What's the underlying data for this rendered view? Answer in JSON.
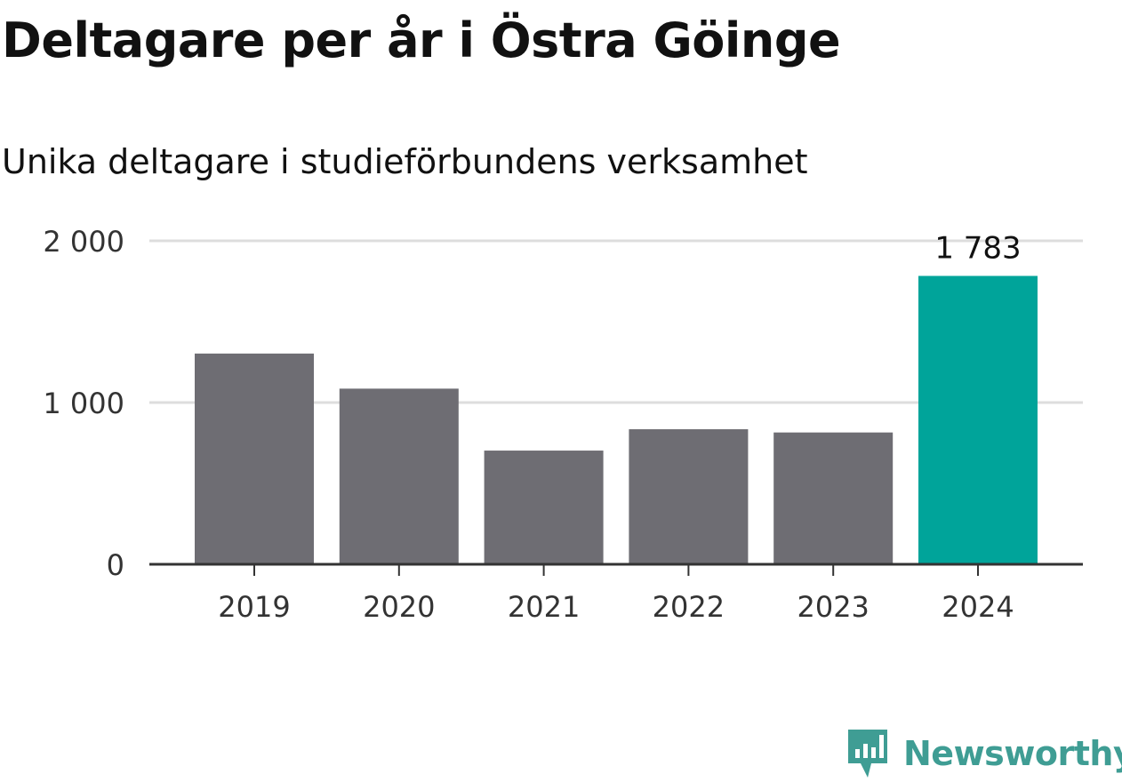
{
  "title": "Deltagare per år i Östra Göinge",
  "subtitle": "Unika deltagare i studieförbundens verksamhet",
  "brand": {
    "name": "Newsworthy",
    "icon": "newsworthy-logo-icon",
    "color": "#3f9d94"
  },
  "colors": {
    "bar": "#6e6d73",
    "highlight": "#00a49a",
    "grid": "#dddddd",
    "axis": "#333333",
    "tick_text": "#333333"
  },
  "chart_data": {
    "type": "bar",
    "categories": [
      "2019",
      "2020",
      "2021",
      "2022",
      "2023",
      "2024"
    ],
    "values": [
      1303,
      1086,
      703,
      835,
      815,
      1783
    ],
    "highlight_index": 5,
    "data_labels": [
      {
        "index": 5,
        "text": "1 783"
      }
    ],
    "y_ticks": [
      {
        "value": 0,
        "label": "0"
      },
      {
        "value": 1000,
        "label": "1 000"
      },
      {
        "value": 2000,
        "label": "2 000"
      }
    ],
    "ylim": [
      0,
      2000
    ],
    "grid": true,
    "legend": "none",
    "xlabel": "",
    "ylabel": ""
  }
}
